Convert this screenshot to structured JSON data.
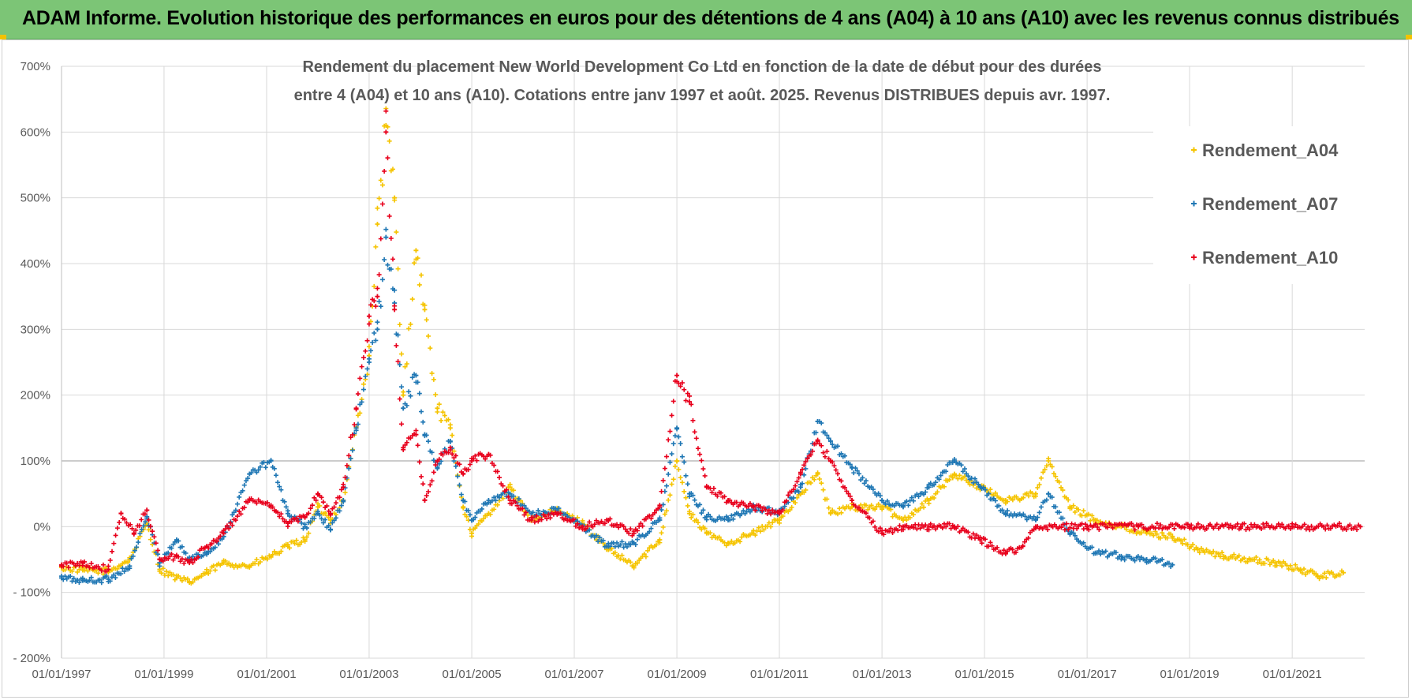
{
  "header": {
    "title": "ADAM Informe. Evolution historique des performances en euros pour des détentions de 4 ans (A04) à 10 ans (A10) avec les revenus connus distribués"
  },
  "chart_data": {
    "type": "scatter",
    "title_lines": [
      "Rendement du placement New World Development Co Ltd en fonction de la date de début pour des durées",
      "entre 4 (A04) et 10 ans (A10).  Cotations entre janv 1997 et août. 2025. Revenus DISTRIBUES depuis avr. 1997."
    ],
    "xlabel": "",
    "ylabel": "",
    "x_range": [
      "1997-01-01",
      "2022-06-01"
    ],
    "ylim": [
      -200,
      700
    ],
    "y_ticks": [
      -200,
      -100,
      0,
      100,
      200,
      300,
      400,
      500,
      600,
      700
    ],
    "y_tick_labels": [
      "- 200%",
      "- 100%",
      "0%",
      "100%",
      "200%",
      "300%",
      "400%",
      "500%",
      "600%",
      "700%"
    ],
    "x_tick_labels": [
      "01/01/1997",
      "01/01/1999",
      "01/01/2001",
      "01/01/2003",
      "01/01/2005",
      "01/01/2007",
      "01/01/2009",
      "01/01/2011",
      "01/01/2013",
      "01/01/2015",
      "01/01/2017",
      "01/01/2019",
      "01/01/2021"
    ],
    "x_tick_dates": [
      "1997-01-01",
      "1999-01-01",
      "2001-01-01",
      "2003-01-01",
      "2005-01-01",
      "2007-01-01",
      "2009-01-01",
      "2011-01-01",
      "2013-01-01",
      "2015-01-01",
      "2017-01-01",
      "2019-01-01",
      "2021-01-01"
    ],
    "grid": true,
    "legend_position": "top-right",
    "series": [
      {
        "name": "Rendement_A04",
        "color": "#f5c400",
        "points": [
          [
            "1997-01-01",
            -62
          ],
          [
            "1997-06-01",
            -66
          ],
          [
            "1997-12-01",
            -68
          ],
          [
            "1998-05-01",
            -50
          ],
          [
            "1998-09-01",
            5
          ],
          [
            "1998-12-01",
            -65
          ],
          [
            "1999-04-01",
            -78
          ],
          [
            "1999-07-01",
            -85
          ],
          [
            "1999-11-01",
            -70
          ],
          [
            "2000-03-01",
            -55
          ],
          [
            "2000-09-01",
            -60
          ],
          [
            "2001-02-01",
            -45
          ],
          [
            "2001-06-01",
            -30
          ],
          [
            "2001-10-01",
            -20
          ],
          [
            "2002-01-01",
            30
          ],
          [
            "2002-04-01",
            10
          ],
          [
            "2002-07-01",
            40
          ],
          [
            "2002-10-01",
            150
          ],
          [
            "2003-01-01",
            260
          ],
          [
            "2003-03-01",
            460
          ],
          [
            "2003-05-01",
            610
          ],
          [
            "2003-07-01",
            500
          ],
          [
            "2003-09-01",
            200
          ],
          [
            "2003-12-01",
            420
          ],
          [
            "2004-02-01",
            330
          ],
          [
            "2004-05-01",
            180
          ],
          [
            "2004-08-01",
            150
          ],
          [
            "2004-11-01",
            30
          ],
          [
            "2005-01-01",
            -10
          ],
          [
            "2005-05-01",
            20
          ],
          [
            "2005-10-01",
            60
          ],
          [
            "2006-03-01",
            10
          ],
          [
            "2006-09-01",
            25
          ],
          [
            "2007-03-01",
            5
          ],
          [
            "2007-09-01",
            -35
          ],
          [
            "2008-03-01",
            -60
          ],
          [
            "2008-09-01",
            -20
          ],
          [
            "2009-01-01",
            100
          ],
          [
            "2009-04-01",
            20
          ],
          [
            "2009-08-01",
            -10
          ],
          [
            "2010-01-01",
            -25
          ],
          [
            "2010-07-01",
            -10
          ],
          [
            "2011-01-01",
            10
          ],
          [
            "2011-06-01",
            50
          ],
          [
            "2011-10-01",
            80
          ],
          [
            "2012-01-01",
            20
          ],
          [
            "2012-06-01",
            30
          ],
          [
            "2013-01-01",
            30
          ],
          [
            "2013-06-01",
            10
          ],
          [
            "2013-12-01",
            40
          ],
          [
            "2014-06-01",
            80
          ],
          [
            "2014-12-01",
            60
          ],
          [
            "2015-06-01",
            40
          ],
          [
            "2016-01-01",
            50
          ],
          [
            "2016-04-01",
            100
          ],
          [
            "2016-09-01",
            30
          ],
          [
            "2017-03-01",
            10
          ],
          [
            "2017-09-01",
            0
          ],
          [
            "2018-03-01",
            -10
          ],
          [
            "2018-09-01",
            -15
          ],
          [
            "2019-03-01",
            -35
          ],
          [
            "2019-09-01",
            -45
          ],
          [
            "2020-03-01",
            -50
          ],
          [
            "2020-09-01",
            -55
          ],
          [
            "2021-03-01",
            -65
          ],
          [
            "2021-07-01",
            -75
          ],
          [
            "2022-01-01",
            -70
          ]
        ]
      },
      {
        "name": "Rendement_A07",
        "color": "#1f77b4",
        "points": [
          [
            "1997-01-01",
            -78
          ],
          [
            "1997-06-01",
            -82
          ],
          [
            "1997-12-01",
            -80
          ],
          [
            "1998-05-01",
            -60
          ],
          [
            "1998-09-01",
            15
          ],
          [
            "1998-12-01",
            -55
          ],
          [
            "1999-04-01",
            -20
          ],
          [
            "1999-07-01",
            -50
          ],
          [
            "1999-11-01",
            -40
          ],
          [
            "2000-03-01",
            -15
          ],
          [
            "2000-09-01",
            80
          ],
          [
            "2001-02-01",
            100
          ],
          [
            "2001-06-01",
            20
          ],
          [
            "2001-10-01",
            0
          ],
          [
            "2002-01-01",
            20
          ],
          [
            "2002-04-01",
            -5
          ],
          [
            "2002-07-01",
            40
          ],
          [
            "2002-10-01",
            150
          ],
          [
            "2003-01-01",
            250
          ],
          [
            "2003-03-01",
            300
          ],
          [
            "2003-05-01",
            440
          ],
          [
            "2003-07-01",
            340
          ],
          [
            "2003-09-01",
            180
          ],
          [
            "2003-12-01",
            230
          ],
          [
            "2004-02-01",
            140
          ],
          [
            "2004-05-01",
            90
          ],
          [
            "2004-08-01",
            130
          ],
          [
            "2004-11-01",
            40
          ],
          [
            "2005-01-01",
            10
          ],
          [
            "2005-05-01",
            40
          ],
          [
            "2005-10-01",
            50
          ],
          [
            "2006-03-01",
            20
          ],
          [
            "2006-09-01",
            25
          ],
          [
            "2007-03-01",
            0
          ],
          [
            "2007-09-01",
            -30
          ],
          [
            "2008-03-01",
            -25
          ],
          [
            "2008-09-01",
            10
          ],
          [
            "2009-01-01",
            150
          ],
          [
            "2009-04-01",
            50
          ],
          [
            "2009-08-01",
            15
          ],
          [
            "2010-01-01",
            10
          ],
          [
            "2010-07-01",
            30
          ],
          [
            "2011-01-01",
            20
          ],
          [
            "2011-06-01",
            60
          ],
          [
            "2011-10-01",
            160
          ],
          [
            "2012-01-01",
            130
          ],
          [
            "2012-06-01",
            90
          ],
          [
            "2013-01-01",
            40
          ],
          [
            "2013-06-01",
            30
          ],
          [
            "2013-12-01",
            60
          ],
          [
            "2014-06-01",
            100
          ],
          [
            "2014-12-01",
            60
          ],
          [
            "2015-06-01",
            20
          ],
          [
            "2016-01-01",
            10
          ],
          [
            "2016-04-01",
            50
          ],
          [
            "2016-09-01",
            -10
          ],
          [
            "2017-03-01",
            -40
          ],
          [
            "2017-09-01",
            -45
          ],
          [
            "2018-03-01",
            -50
          ],
          [
            "2018-09-01",
            -58
          ]
        ]
      },
      {
        "name": "Rendement_A10",
        "color": "#e8001c",
        "points": [
          [
            "1997-01-01",
            -60
          ],
          [
            "1997-06-01",
            -55
          ],
          [
            "1997-12-01",
            -65
          ],
          [
            "1998-03-01",
            20
          ],
          [
            "1998-06-01",
            -10
          ],
          [
            "1998-09-01",
            25
          ],
          [
            "1998-12-01",
            -50
          ],
          [
            "1999-04-01",
            -45
          ],
          [
            "1999-07-01",
            -55
          ],
          [
            "1999-11-01",
            -30
          ],
          [
            "2000-03-01",
            -10
          ],
          [
            "2000-09-01",
            40
          ],
          [
            "2001-02-01",
            30
          ],
          [
            "2001-06-01",
            5
          ],
          [
            "2001-10-01",
            15
          ],
          [
            "2002-01-01",
            50
          ],
          [
            "2002-04-01",
            20
          ],
          [
            "2002-07-01",
            60
          ],
          [
            "2002-10-01",
            180
          ],
          [
            "2003-01-01",
            320
          ],
          [
            "2003-03-01",
            350
          ],
          [
            "2003-05-01",
            600
          ],
          [
            "2003-07-01",
            330
          ],
          [
            "2003-09-01",
            120
          ],
          [
            "2003-12-01",
            140
          ],
          [
            "2004-02-01",
            40
          ],
          [
            "2004-05-01",
            100
          ],
          [
            "2004-08-01",
            120
          ],
          [
            "2004-11-01",
            80
          ],
          [
            "2005-01-01",
            100
          ],
          [
            "2005-05-01",
            110
          ],
          [
            "2005-10-01",
            40
          ],
          [
            "2006-03-01",
            10
          ],
          [
            "2006-09-01",
            20
          ],
          [
            "2007-03-01",
            0
          ],
          [
            "2007-09-01",
            10
          ],
          [
            "2008-03-01",
            -10
          ],
          [
            "2008-09-01",
            30
          ],
          [
            "2009-01-01",
            230
          ],
          [
            "2009-04-01",
            190
          ],
          [
            "2009-08-01",
            60
          ],
          [
            "2010-01-01",
            40
          ],
          [
            "2010-07-01",
            30
          ],
          [
            "2011-01-01",
            20
          ],
          [
            "2011-06-01",
            80
          ],
          [
            "2011-10-01",
            130
          ],
          [
            "2012-01-01",
            100
          ],
          [
            "2012-06-01",
            40
          ],
          [
            "2013-01-01",
            -10
          ],
          [
            "2013-06-01",
            0
          ],
          [
            "2013-12-01",
            0
          ],
          [
            "2014-06-01",
            0
          ],
          [
            "2014-12-01",
            -20
          ],
          [
            "2015-06-01",
            -40
          ],
          [
            "2015-10-01",
            -30
          ],
          [
            "2016-01-01",
            0
          ],
          [
            "2017-01-01",
            0
          ],
          [
            "2018-01-01",
            0
          ],
          [
            "2019-01-01",
            0
          ],
          [
            "2020-01-01",
            0
          ],
          [
            "2021-01-01",
            0
          ],
          [
            "2022-05-01",
            0
          ]
        ]
      }
    ]
  }
}
